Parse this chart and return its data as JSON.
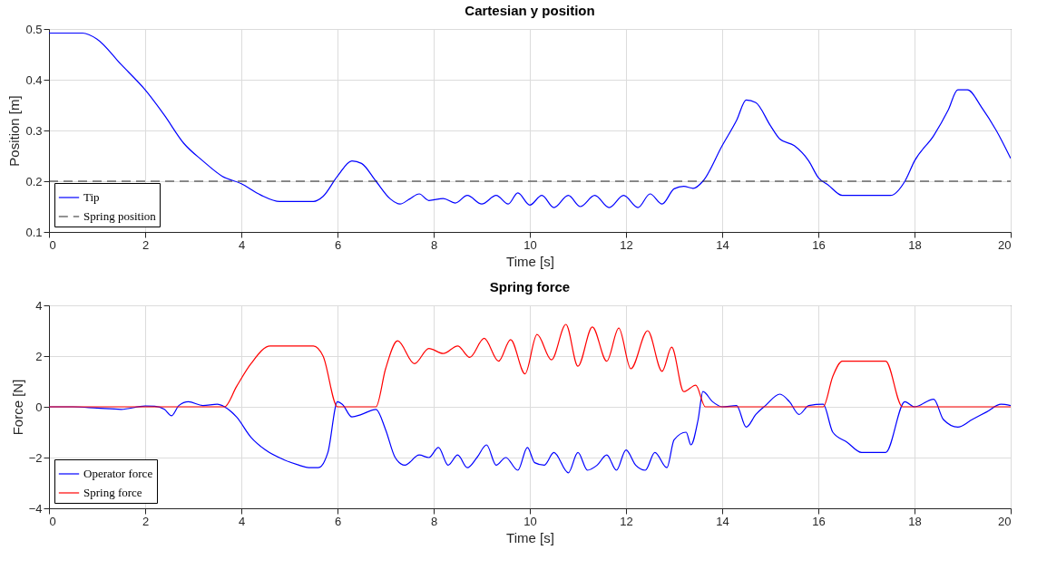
{
  "chart_data": [
    {
      "type": "line",
      "title": "Cartesian y position",
      "xlabel": "Time [s]",
      "ylabel": "Position [m]",
      "xlim": [
        0,
        20
      ],
      "xticks": [
        0,
        2,
        4,
        6,
        8,
        10,
        12,
        14,
        16,
        18,
        20
      ],
      "ylim": [
        0.1,
        0.5
      ],
      "yticks": [
        0.1,
        0.2,
        0.3,
        0.4,
        0.5
      ],
      "grid": true,
      "legend": "bottom left",
      "series": [
        {
          "name": "Tip",
          "color": "#0000ff",
          "line_style": "solid",
          "x": [
            0,
            0.7,
            1.0,
            1.5,
            2.0,
            2.4,
            2.8,
            3.2,
            3.6,
            4.0,
            4.4,
            4.8,
            5.5,
            5.7,
            6.0,
            6.3,
            6.5,
            6.8,
            7.1,
            7.3,
            7.5,
            7.7,
            7.9,
            8.2,
            8.45,
            8.7,
            9.0,
            9.3,
            9.55,
            9.75,
            10.0,
            10.25,
            10.5,
            10.8,
            11.05,
            11.35,
            11.65,
            11.95,
            12.25,
            12.5,
            12.75,
            13.0,
            13.2,
            13.4,
            13.6,
            14.0,
            14.3,
            14.5,
            14.7,
            15.0,
            15.2,
            15.5,
            15.8,
            16.0,
            16.2,
            16.5,
            17.5,
            17.8,
            18.0,
            18.4,
            18.7,
            18.9,
            19.1,
            19.4,
            19.7,
            20.0
          ],
          "values": [
            0.492,
            0.492,
            0.48,
            0.43,
            0.38,
            0.33,
            0.275,
            0.24,
            0.21,
            0.195,
            0.173,
            0.16,
            0.16,
            0.17,
            0.21,
            0.24,
            0.235,
            0.2,
            0.165,
            0.155,
            0.165,
            0.175,
            0.162,
            0.166,
            0.157,
            0.172,
            0.155,
            0.172,
            0.155,
            0.177,
            0.153,
            0.172,
            0.148,
            0.172,
            0.15,
            0.172,
            0.148,
            0.172,
            0.148,
            0.175,
            0.155,
            0.185,
            0.19,
            0.186,
            0.2,
            0.27,
            0.32,
            0.36,
            0.355,
            0.31,
            0.283,
            0.27,
            0.24,
            0.207,
            0.193,
            0.172,
            0.172,
            0.2,
            0.24,
            0.29,
            0.34,
            0.38,
            0.38,
            0.345,
            0.3,
            0.245
          ]
        }
      ],
      "ref_lines": [
        {
          "axis": "y",
          "value": 0.2,
          "label": "Spring position",
          "color": "#262626",
          "line_style": "dashed"
        }
      ]
    },
    {
      "type": "line",
      "title": "Spring force",
      "xlabel": "Time [s]",
      "ylabel": "Force [N]",
      "xlim": [
        0,
        20
      ],
      "xticks": [
        0,
        2,
        4,
        6,
        8,
        10,
        12,
        14,
        16,
        18,
        20
      ],
      "ylim": [
        -4,
        4
      ],
      "yticks": [
        -4,
        -2,
        0,
        2,
        4
      ],
      "grid": true,
      "legend": "bottom left",
      "series": [
        {
          "name": "Operator force",
          "color": "#0000ff",
          "line_style": "solid",
          "x": [
            0,
            0.5,
            1.0,
            1.5,
            2.0,
            2.2,
            2.4,
            2.55,
            2.7,
            2.9,
            3.2,
            3.5,
            3.65,
            3.9,
            4.2,
            4.5,
            4.9,
            5.2,
            5.4,
            5.6,
            5.8,
            6.0,
            6.1,
            6.3,
            6.5,
            6.8,
            7.0,
            7.2,
            7.4,
            7.7,
            7.9,
            8.1,
            8.3,
            8.5,
            8.7,
            8.9,
            9.1,
            9.3,
            9.5,
            9.75,
            9.95,
            10.1,
            10.3,
            10.5,
            10.8,
            11.0,
            11.2,
            11.4,
            11.6,
            11.8,
            12.0,
            12.2,
            12.4,
            12.6,
            12.85,
            13.0,
            13.25,
            13.35,
            13.5,
            13.6,
            13.8,
            14.0,
            14.3,
            14.5,
            14.7,
            14.9,
            15.2,
            15.4,
            15.6,
            15.8,
            16.1,
            16.3,
            16.6,
            16.9,
            17.4,
            17.8,
            18.0,
            18.4,
            18.6,
            18.9,
            19.2,
            19.5,
            19.8,
            20.0
          ],
          "values": [
            0,
            0,
            -0.05,
            -0.1,
            0.03,
            0.02,
            -0.1,
            -0.35,
            0.05,
            0.2,
            0.05,
            0.1,
            0,
            -0.4,
            -1.2,
            -1.7,
            -2.1,
            -2.3,
            -2.4,
            -2.4,
            -1.8,
            0.2,
            0.1,
            -0.4,
            -0.3,
            -0.1,
            -0.9,
            -2.0,
            -2.3,
            -1.9,
            -2.0,
            -1.6,
            -2.3,
            -1.9,
            -2.4,
            -2.0,
            -1.5,
            -2.3,
            -2.0,
            -2.5,
            -1.6,
            -2.2,
            -2.3,
            -1.8,
            -2.6,
            -1.8,
            -2.5,
            -2.3,
            -1.9,
            -2.5,
            -1.7,
            -2.3,
            -2.5,
            -1.8,
            -2.4,
            -1.3,
            -1.0,
            -1.5,
            -0.5,
            0.6,
            0.2,
            0,
            0.05,
            -0.8,
            -0.3,
            0.05,
            0.5,
            0.2,
            -0.3,
            0.05,
            0.1,
            -1.0,
            -1.4,
            -1.8,
            -1.8,
            0.2,
            0,
            0.3,
            -0.5,
            -0.8,
            -0.5,
            -0.2,
            0.1,
            0.05
          ]
        },
        {
          "name": "Spring force",
          "color": "#ff0000",
          "line_style": "solid",
          "x": [
            0,
            3.65,
            3.9,
            4.2,
            4.6,
            5.5,
            5.7,
            6.0,
            6.8,
            7.0,
            7.25,
            7.6,
            7.9,
            8.2,
            8.5,
            8.75,
            9.05,
            9.35,
            9.6,
            9.9,
            10.15,
            10.45,
            10.75,
            11.0,
            11.3,
            11.6,
            11.85,
            12.1,
            12.45,
            12.75,
            12.95,
            13.2,
            13.45,
            13.65,
            16.1,
            16.3,
            16.5,
            17.4,
            17.75,
            20.0
          ],
          "values": [
            0,
            0,
            0.8,
            1.7,
            2.4,
            2.4,
            2.0,
            0,
            0,
            1.5,
            2.6,
            1.7,
            2.3,
            2.1,
            2.4,
            1.95,
            2.7,
            1.8,
            2.65,
            1.3,
            2.85,
            1.85,
            3.25,
            1.6,
            3.15,
            1.8,
            3.1,
            1.5,
            3.0,
            1.4,
            2.35,
            0.6,
            0.85,
            0,
            0,
            1.2,
            1.8,
            1.8,
            0,
            0
          ]
        }
      ]
    }
  ]
}
